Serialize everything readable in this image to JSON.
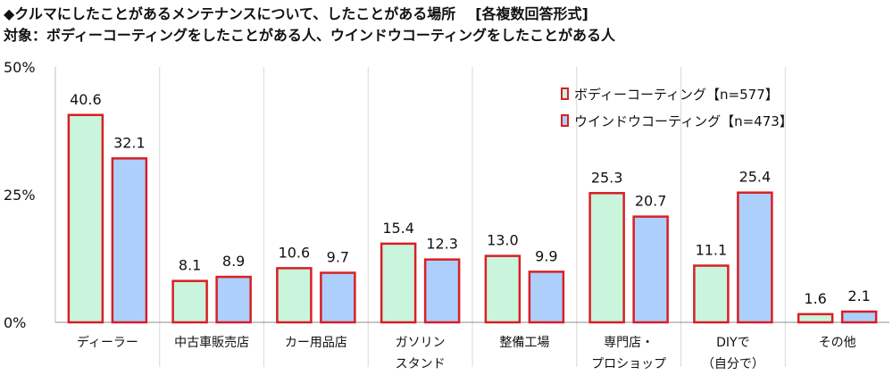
{
  "header": {
    "title": "◆クルマにしたことがあるメンテナンスについて、したことがある場所",
    "format": "[各複数回答形式]",
    "target_label": "対象：",
    "target_text": "ボディーコーティングをしたことがある人、ウインドウコーティングをしたことがある人"
  },
  "chart_data": {
    "type": "bar",
    "categories": [
      [
        "ディーラー"
      ],
      [
        "中古車販売店"
      ],
      [
        "カー用品店"
      ],
      [
        "ガソリン",
        "スタンド"
      ],
      [
        "整備工場"
      ],
      [
        "専門店・",
        "プロショップ"
      ],
      [
        "DIYで",
        "（自分で）"
      ],
      [
        "その他"
      ]
    ],
    "series": [
      {
        "name": "ボディーコーティング【n=577】",
        "values": [
          40.6,
          8.1,
          10.6,
          15.4,
          13.0,
          25.3,
          11.1,
          1.6
        ],
        "color": "#c9f5dc"
      },
      {
        "name": "ウインドウコーティング【n=473】",
        "values": [
          32.1,
          8.9,
          9.7,
          12.3,
          9.9,
          20.7,
          25.4,
          2.1
        ],
        "color": "#acd0fb"
      }
    ],
    "value_labels": [
      [
        "40.6",
        "8.1",
        "10.6",
        "15.4",
        "13.0",
        "25.3",
        "11.1",
        "1.6"
      ],
      [
        "32.1",
        "8.9",
        "9.7",
        "12.3",
        "9.9",
        "20.7",
        "25.4",
        "2.1"
      ]
    ],
    "bar_border_color": "#d81f26",
    "ylim": [
      0,
      50
    ],
    "y_ticks": [
      "0%",
      "25%",
      "50%"
    ],
    "y_tick_values": [
      0,
      25,
      50
    ],
    "legend_position": "top-right",
    "grid": "vertical-category-separators"
  }
}
